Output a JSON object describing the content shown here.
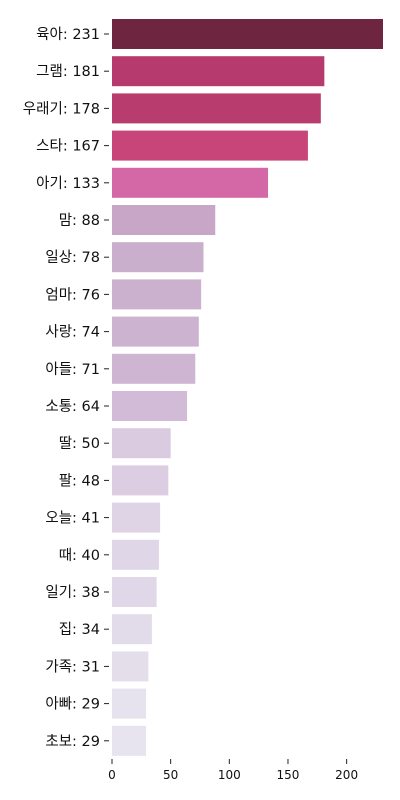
{
  "chart_data": {
    "type": "bar",
    "orientation": "horizontal",
    "categories": [
      "육아: 231",
      "그램: 181",
      "우래기: 178",
      "스타: 167",
      "아기: 133",
      "맘: 88",
      "일상: 78",
      "엄마: 76",
      "사랑: 74",
      "아들: 71",
      "소통: 64",
      "딸: 50",
      "팔: 48",
      "오늘: 41",
      "때: 40",
      "일기: 38",
      "집: 34",
      "가족: 31",
      "아빠: 29",
      "초보: 29"
    ],
    "values": [
      231,
      181,
      178,
      167,
      133,
      88,
      78,
      76,
      74,
      71,
      64,
      50,
      48,
      41,
      40,
      38,
      34,
      31,
      29,
      29
    ],
    "colors": [
      "#6e2640",
      "#b63a6e",
      "#b93c6f",
      "#c84579",
      "#d467a6",
      "#c8a6c8",
      "#caafcc",
      "#ccb1cf",
      "#ccb3d0",
      "#ceb6d3",
      "#d1bbd7",
      "#dacbe1",
      "#dccde2",
      "#ded4e6",
      "#dfd6e7",
      "#e0d8e8",
      "#e2dbea",
      "#e4deeb",
      "#e6e2ee",
      "#e7e3ef"
    ],
    "xticks": [
      0,
      50,
      100,
      150,
      200
    ],
    "xlim": [
      0,
      231
    ],
    "grid": false,
    "title": "",
    "xlabel": "",
    "ylabel": ""
  }
}
